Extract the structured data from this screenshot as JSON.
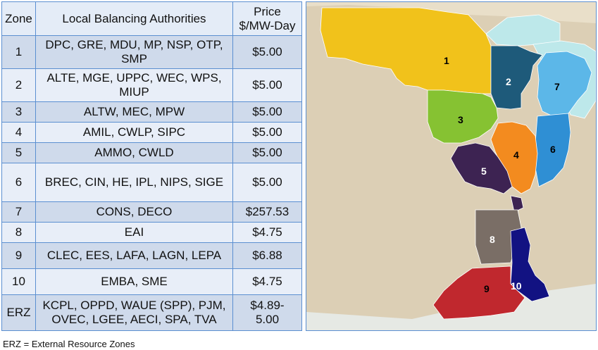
{
  "table": {
    "headers": {
      "zone": "Zone",
      "lba": "Local Balancing Authorities",
      "price_line1": "Price",
      "price_line2": "$/MW-Day"
    },
    "rows": [
      {
        "zone": "1",
        "lba_line1": "DPC, GRE, MDU, MP, NSP, OTP,",
        "lba_line2": "SMP",
        "price_line1": "$5.00",
        "price_line2": ""
      },
      {
        "zone": "2",
        "lba_line1": "ALTE, MGE, UPPC, WEC, WPS,",
        "lba_line2": "MIUP",
        "price_line1": "$5.00",
        "price_line2": ""
      },
      {
        "zone": "3",
        "lba_line1": "ALTW, MEC, MPW",
        "lba_line2": "",
        "price_line1": "$5.00",
        "price_line2": ""
      },
      {
        "zone": "4",
        "lba_line1": "AMIL, CWLP, SIPC",
        "lba_line2": "",
        "price_line1": "$5.00",
        "price_line2": ""
      },
      {
        "zone": "5",
        "lba_line1": "AMMO, CWLD",
        "lba_line2": "",
        "price_line1": "$5.00",
        "price_line2": ""
      },
      {
        "zone": "6",
        "lba_line1": "BREC, CIN, HE, IPL, NIPS, SIGE",
        "lba_line2": "",
        "price_line1": "$5.00",
        "price_line2": ""
      },
      {
        "zone": "7",
        "lba_line1": "CONS, DECO",
        "lba_line2": "",
        "price_line1": "$257.53",
        "price_line2": ""
      },
      {
        "zone": "8",
        "lba_line1": "EAI",
        "lba_line2": "",
        "price_line1": "$4.75",
        "price_line2": ""
      },
      {
        "zone": "9",
        "lba_line1": "CLEC, EES, LAFA, LAGN, LEPA",
        "lba_line2": "",
        "price_line1": "$6.88",
        "price_line2": ""
      },
      {
        "zone": "10",
        "lba_line1": "EMBA, SME",
        "lba_line2": "",
        "price_line1": "$4.75",
        "price_line2": ""
      },
      {
        "zone": "ERZ",
        "lba_line1": "KCPL, OPPD, WAUE (SPP), PJM,",
        "lba_line2": "OVEC, LGEE, AECI, SPA, TVA",
        "price_line1": "$4.89-",
        "price_line2": "5.00"
      }
    ]
  },
  "footnote": "ERZ = External Resource Zones",
  "map": {
    "zone_labels": [
      "1",
      "2",
      "3",
      "4",
      "5",
      "6",
      "7",
      "8",
      "9",
      "10"
    ],
    "colors": {
      "zone1": "#f1c21b",
      "zone2": "#1e5a7a",
      "zone3": "#86c232",
      "zone4": "#f38b1f",
      "zone5": "#3d2352",
      "zone6": "#2f8fd4",
      "zone7": "#5cb7e8",
      "zone8": "#7a6e66",
      "zone9": "#c0282e",
      "zone10": "#121282",
      "land": "#dccfb5",
      "water": "#bde8ea"
    }
  }
}
